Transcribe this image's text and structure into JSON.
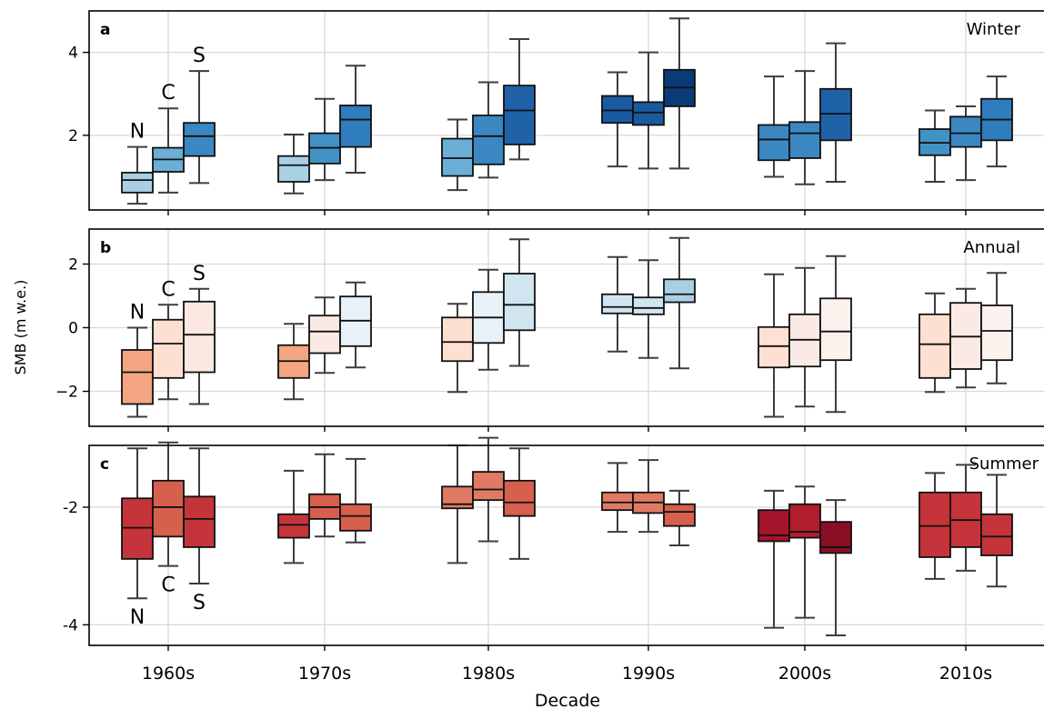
{
  "figure": {
    "ylabel": "SMB (m w.e.)",
    "xlabel": "Decade"
  },
  "chart_data": [
    {
      "type": "box",
      "panel_label": "a",
      "season_label": "Winter",
      "categories": [
        "1960s",
        "1970s",
        "1980s",
        "1990s",
        "2000s",
        "2010s"
      ],
      "yticks": [
        2,
        4
      ],
      "ytick_labels": [
        "2",
        "4"
      ],
      "ylim": [
        0.2,
        5.0
      ],
      "grid": true,
      "group_labels": [
        "N",
        "C",
        "S"
      ],
      "boxes": [
        [
          {
            "wlo": 0.35,
            "q1": 0.62,
            "med": 0.92,
            "q3": 1.1,
            "whi": 1.72,
            "color": "#a9cfe5"
          },
          {
            "wlo": 0.62,
            "q1": 1.12,
            "med": 1.42,
            "q3": 1.7,
            "whi": 2.65,
            "color": "#6baed6"
          },
          {
            "wlo": 0.85,
            "q1": 1.5,
            "med": 1.98,
            "q3": 2.3,
            "whi": 3.55,
            "color": "#3a87c2"
          }
        ],
        [
          {
            "wlo": 0.6,
            "q1": 0.88,
            "med": 1.28,
            "q3": 1.5,
            "whi": 2.02,
            "color": "#a9cfe5"
          },
          {
            "wlo": 0.92,
            "q1": 1.32,
            "med": 1.7,
            "q3": 2.05,
            "whi": 2.88,
            "color": "#4292c6"
          },
          {
            "wlo": 1.1,
            "q1": 1.72,
            "med": 2.38,
            "q3": 2.72,
            "whi": 3.68,
            "color": "#2f7cbf"
          }
        ],
        [
          {
            "wlo": 0.68,
            "q1": 1.02,
            "med": 1.45,
            "q3": 1.92,
            "whi": 2.38,
            "color": "#6baed6"
          },
          {
            "wlo": 0.98,
            "q1": 1.3,
            "med": 1.98,
            "q3": 2.48,
            "whi": 3.28,
            "color": "#3a87c2"
          },
          {
            "wlo": 1.42,
            "q1": 1.78,
            "med": 2.6,
            "q3": 3.2,
            "whi": 4.32,
            "color": "#1f62a8"
          }
        ],
        [
          {
            "wlo": 1.25,
            "q1": 2.3,
            "med": 2.6,
            "q3": 2.95,
            "whi": 3.52,
            "color": "#1a5aa0"
          },
          {
            "wlo": 1.2,
            "q1": 2.25,
            "med": 2.55,
            "q3": 2.8,
            "whi": 4.0,
            "color": "#1a5aa0"
          },
          {
            "wlo": 1.2,
            "q1": 2.7,
            "med": 3.15,
            "q3": 3.58,
            "whi": 4.82,
            "color": "#0b3a78"
          }
        ],
        [
          {
            "wlo": 1.0,
            "q1": 1.4,
            "med": 1.9,
            "q3": 2.25,
            "whi": 3.42,
            "color": "#3a87c2"
          },
          {
            "wlo": 0.82,
            "q1": 1.45,
            "med": 2.05,
            "q3": 2.32,
            "whi": 3.55,
            "color": "#3a87c2"
          },
          {
            "wlo": 0.88,
            "q1": 1.88,
            "med": 2.52,
            "q3": 3.12,
            "whi": 4.22,
            "color": "#1f62a8"
          }
        ],
        [
          {
            "wlo": 0.88,
            "q1": 1.52,
            "med": 1.82,
            "q3": 2.15,
            "whi": 2.6,
            "color": "#4292c6"
          },
          {
            "wlo": 0.92,
            "q1": 1.72,
            "med": 2.05,
            "q3": 2.45,
            "whi": 2.7,
            "color": "#3a87c2"
          },
          {
            "wlo": 1.25,
            "q1": 1.88,
            "med": 2.38,
            "q3": 2.88,
            "whi": 3.42,
            "color": "#2f7cbf"
          }
        ]
      ]
    },
    {
      "type": "box",
      "panel_label": "b",
      "season_label": "Annual",
      "categories": [
        "1960s",
        "1970s",
        "1980s",
        "1990s",
        "2000s",
        "2010s"
      ],
      "yticks": [
        -2,
        0,
        2
      ],
      "ytick_labels": [
        "−2",
        "0",
        "2"
      ],
      "ylim": [
        -3.1,
        3.1
      ],
      "grid": true,
      "group_labels": [
        "N",
        "C",
        "S"
      ],
      "boxes": [
        [
          {
            "wlo": -2.8,
            "q1": -2.4,
            "med": -1.4,
            "q3": -0.7,
            "whi": 0.0,
            "color": "#f4a582"
          },
          {
            "wlo": -2.25,
            "q1": -1.58,
            "med": -0.5,
            "q3": 0.25,
            "whi": 0.72,
            "color": "#fde0d1"
          },
          {
            "wlo": -2.4,
            "q1": -1.4,
            "med": -0.22,
            "q3": 0.82,
            "whi": 1.22,
            "color": "#fbe9e1"
          }
        ],
        [
          {
            "wlo": -2.25,
            "q1": -1.58,
            "med": -1.05,
            "q3": -0.55,
            "whi": 0.12,
            "color": "#f4a582"
          },
          {
            "wlo": -1.42,
            "q1": -0.8,
            "med": -0.12,
            "q3": 0.38,
            "whi": 0.95,
            "color": "#fbeae3"
          },
          {
            "wlo": -1.25,
            "q1": -0.58,
            "med": 0.22,
            "q3": 0.98,
            "whi": 1.42,
            "color": "#e8f1f7"
          }
        ],
        [
          {
            "wlo": -2.02,
            "q1": -1.05,
            "med": -0.45,
            "q3": 0.32,
            "whi": 0.75,
            "color": "#fde0d1"
          },
          {
            "wlo": -1.32,
            "q1": -0.48,
            "med": 0.32,
            "q3": 1.12,
            "whi": 1.82,
            "color": "#e8f1f7"
          },
          {
            "wlo": -1.2,
            "q1": -0.08,
            "med": 0.72,
            "q3": 1.7,
            "whi": 2.78,
            "color": "#d1e5f0"
          }
        ],
        [
          {
            "wlo": -0.75,
            "q1": 0.45,
            "med": 0.65,
            "q3": 1.05,
            "whi": 2.22,
            "color": "#d1e5f0"
          },
          {
            "wlo": -0.95,
            "q1": 0.42,
            "med": 0.62,
            "q3": 0.95,
            "whi": 2.12,
            "color": "#d1e5f0"
          },
          {
            "wlo": -1.28,
            "q1": 0.8,
            "med": 1.05,
            "q3": 1.52,
            "whi": 2.82,
            "color": "#a9cfe5"
          }
        ],
        [
          {
            "wlo": -2.8,
            "q1": -1.25,
            "med": -0.58,
            "q3": 0.02,
            "whi": 1.68,
            "color": "#fde0d1"
          },
          {
            "wlo": -2.48,
            "q1": -1.22,
            "med": -0.38,
            "q3": 0.42,
            "whi": 1.88,
            "color": "#fbeae3"
          },
          {
            "wlo": -2.65,
            "q1": -1.02,
            "med": -0.12,
            "q3": 0.92,
            "whi": 2.25,
            "color": "#fbf1ed"
          }
        ],
        [
          {
            "wlo": -2.02,
            "q1": -1.58,
            "med": -0.52,
            "q3": 0.42,
            "whi": 1.08,
            "color": "#fde0d1"
          },
          {
            "wlo": -1.88,
            "q1": -1.3,
            "med": -0.28,
            "q3": 0.78,
            "whi": 1.22,
            "color": "#fbeae3"
          },
          {
            "wlo": -1.75,
            "q1": -1.02,
            "med": -0.1,
            "q3": 0.7,
            "whi": 1.72,
            "color": "#fbf1ed"
          }
        ]
      ]
    },
    {
      "type": "box",
      "panel_label": "c",
      "season_label": "Summer",
      "categories": [
        "1960s",
        "1970s",
        "1980s",
        "1990s",
        "2000s",
        "2010s"
      ],
      "yticks": [
        -4,
        -2
      ],
      "ytick_labels": [
        "-4",
        "-2"
      ],
      "ylim": [
        -4.35,
        -0.95
      ],
      "grid": true,
      "group_labels": [
        "N",
        "C",
        "S"
      ],
      "boxes": [
        [
          {
            "wlo": -3.55,
            "q1": -2.88,
            "med": -2.35,
            "q3": -1.85,
            "whi": -1.0,
            "color": "#c4343a"
          },
          {
            "wlo": -3.0,
            "q1": -2.5,
            "med": -2.0,
            "q3": -1.55,
            "whi": -0.9,
            "color": "#d6604d"
          },
          {
            "wlo": -3.3,
            "q1": -2.68,
            "med": -2.2,
            "q3": -1.82,
            "whi": -1.0,
            "color": "#c4343a"
          }
        ],
        [
          {
            "wlo": -2.95,
            "q1": -2.52,
            "med": -2.3,
            "q3": -2.12,
            "whi": -1.38,
            "color": "#c4343a"
          },
          {
            "wlo": -2.5,
            "q1": -2.2,
            "med": -2.0,
            "q3": -1.78,
            "whi": -1.1,
            "color": "#d6604d"
          },
          {
            "wlo": -2.6,
            "q1": -2.4,
            "med": -2.15,
            "q3": -1.95,
            "whi": -1.18,
            "color": "#d6604d"
          }
        ],
        [
          {
            "wlo": -2.95,
            "q1": -2.02,
            "med": -1.95,
            "q3": -1.65,
            "whi": -0.95,
            "color": "#e07a63"
          },
          {
            "wlo": -2.58,
            "q1": -1.88,
            "med": -1.7,
            "q3": -1.4,
            "whi": -0.82,
            "color": "#e07a63"
          },
          {
            "wlo": -2.88,
            "q1": -2.15,
            "med": -1.92,
            "q3": -1.55,
            "whi": -1.0,
            "color": "#d6604d"
          }
        ],
        [
          {
            "wlo": -2.42,
            "q1": -2.05,
            "med": -1.92,
            "q3": -1.75,
            "whi": -1.25,
            "color": "#e07a63"
          },
          {
            "wlo": -2.42,
            "q1": -2.1,
            "med": -1.92,
            "q3": -1.75,
            "whi": -1.2,
            "color": "#e07a63"
          },
          {
            "wlo": -2.65,
            "q1": -2.32,
            "med": -2.08,
            "q3": -1.95,
            "whi": -1.72,
            "color": "#d6604d"
          }
        ],
        [
          {
            "wlo": -4.05,
            "q1": -2.58,
            "med": -2.48,
            "q3": -2.05,
            "whi": -1.72,
            "color": "#a5142b"
          },
          {
            "wlo": -3.88,
            "q1": -2.52,
            "med": -2.42,
            "q3": -1.95,
            "whi": -1.65,
            "color": "#b01e2e"
          },
          {
            "wlo": -4.18,
            "q1": -2.78,
            "med": -2.68,
            "q3": -2.25,
            "whi": -1.88,
            "color": "#8a0f25"
          }
        ],
        [
          {
            "wlo": -3.22,
            "q1": -2.85,
            "med": -2.32,
            "q3": -1.75,
            "whi": -1.42,
            "color": "#c4343a"
          },
          {
            "wlo": -3.08,
            "q1": -2.68,
            "med": -2.22,
            "q3": -1.75,
            "whi": -1.28,
            "color": "#c4343a"
          },
          {
            "wlo": -3.35,
            "q1": -2.82,
            "med": -2.5,
            "q3": -2.12,
            "whi": -1.45,
            "color": "#c4343a"
          }
        ]
      ]
    }
  ]
}
